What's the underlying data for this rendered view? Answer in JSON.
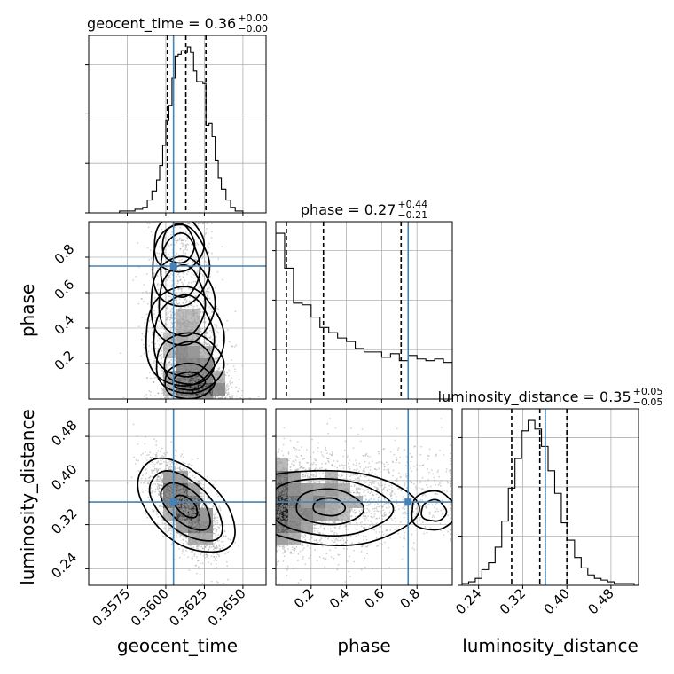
{
  "chart_data": {
    "type": "corner",
    "truth_color": "#4682b4",
    "parameters": [
      {
        "name": "geocent_time",
        "title": {
          "label": "geocent_time = 0.36",
          "upper": "+0.00",
          "lower": "−0.00"
        },
        "range": [
          0.355,
          0.3665
        ],
        "ticks": [
          0.3575,
          0.36,
          0.3625,
          0.365
        ],
        "tick_labels": [
          "0.3575",
          "0.3600",
          "0.3625",
          "0.3650"
        ],
        "truth": 0.3605,
        "quantiles": [
          0.3601,
          0.3613,
          0.3626
        ],
        "hist": {
          "edges": [
            0.357,
            0.3575,
            0.358,
            0.3585,
            0.3588,
            0.3591,
            0.3594,
            0.3596,
            0.3598,
            0.36,
            0.3602,
            0.3604,
            0.3606,
            0.3608,
            0.361,
            0.3612,
            0.3614,
            0.3616,
            0.3618,
            0.362,
            0.3622,
            0.3624,
            0.3626,
            0.3628,
            0.363,
            0.3632,
            0.3634,
            0.3636,
            0.3639,
            0.3642,
            0.3645,
            0.365,
            0.3655
          ],
          "counts": [
            1,
            1,
            2,
            3,
            7,
            12,
            18,
            26,
            37,
            51,
            59,
            74,
            86,
            87,
            89,
            88,
            91,
            88,
            78,
            72,
            72,
            71,
            48,
            49,
            42,
            29,
            19,
            13,
            7,
            3,
            1,
            0
          ]
        }
      },
      {
        "name": "phase",
        "title": {
          "label": "phase = 0.27",
          "upper": "+0.44",
          "lower": "−0.21"
        },
        "range": [
          0.0,
          1.0
        ],
        "ticks": [
          0.2,
          0.4,
          0.6,
          0.8
        ],
        "tick_labels": [
          "0.2",
          "0.4",
          "0.6",
          "0.8"
        ],
        "truth": 0.75,
        "quantiles": [
          0.06,
          0.27,
          0.71
        ],
        "hist": {
          "edges": [
            0.0,
            0.05,
            0.1,
            0.15,
            0.2,
            0.25,
            0.3,
            0.35,
            0.4,
            0.45,
            0.5,
            0.55,
            0.6,
            0.65,
            0.7,
            0.75,
            0.8,
            0.85,
            0.9,
            0.95,
            1.0
          ],
          "counts": [
            95,
            75,
            55,
            54,
            47,
            41,
            38,
            35,
            33,
            29,
            27,
            27,
            24,
            26,
            22,
            25,
            23,
            22,
            23,
            21
          ]
        }
      },
      {
        "name": "luminosity_distance",
        "title": {
          "label": "luminosity_distance = 0.35",
          "upper": "+0.05",
          "lower": "−0.05"
        },
        "range": [
          0.21,
          0.53
        ],
        "ticks": [
          0.24,
          0.32,
          0.4,
          0.48
        ],
        "tick_labels": [
          "0.24",
          "0.32",
          "0.40",
          "0.48"
        ],
        "truth": 0.361,
        "quantiles": [
          0.3,
          0.351,
          0.4
        ],
        "hist": {
          "edges": [
            0.21,
            0.222,
            0.234,
            0.246,
            0.258,
            0.27,
            0.282,
            0.294,
            0.306,
            0.318,
            0.33,
            0.342,
            0.354,
            0.366,
            0.378,
            0.39,
            0.402,
            0.414,
            0.426,
            0.438,
            0.45,
            0.462,
            0.474,
            0.486,
            0.498,
            0.51,
            0.522,
            0.53
          ],
          "counts": [
            1,
            2,
            4,
            9,
            13,
            22,
            37,
            56,
            73,
            89,
            95,
            90,
            80,
            66,
            53,
            36,
            26,
            16,
            10,
            6,
            4,
            3,
            2,
            1,
            1,
            1,
            0
          ]
        }
      }
    ],
    "pairs": [
      {
        "x": "geocent_time",
        "y": "phase",
        "truth_point": [
          0.3605,
          0.75
        ]
      },
      {
        "x": "geocent_time",
        "y": "luminosity_distance",
        "truth_point": [
          0.3605,
          0.361
        ]
      },
      {
        "x": "phase",
        "y": "luminosity_distance",
        "truth_point": [
          0.75,
          0.361
        ]
      }
    ]
  }
}
